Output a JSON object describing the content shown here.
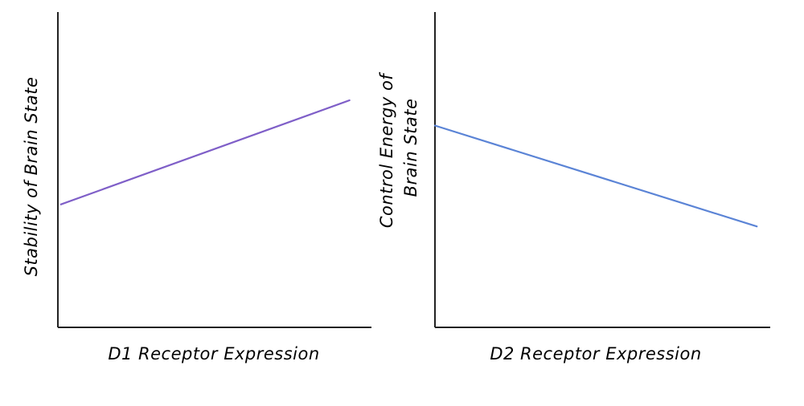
{
  "chart_data": [
    {
      "type": "line",
      "xlabel": "D1 Receptor Expression",
      "ylabel": [
        "Stability of Brain State"
      ],
      "xlim": [
        0,
        1
      ],
      "ylim": [
        0,
        1
      ],
      "grid": false,
      "series": [
        {
          "color": "#7f5fc8",
          "x": [
            0.01,
            0.93
          ],
          "y": [
            0.39,
            0.72
          ]
        }
      ]
    },
    {
      "type": "line",
      "xlabel": "D2 Receptor Expression",
      "ylabel": [
        "Control Energy of",
        "Brain State"
      ],
      "xlim": [
        0,
        1
      ],
      "ylim": [
        0,
        1
      ],
      "grid": false,
      "series": [
        {
          "color": "#5b84d6",
          "x": [
            0.0,
            0.96
          ],
          "y": [
            0.64,
            0.32
          ]
        }
      ]
    }
  ],
  "colors": {
    "axis": "#222222",
    "text": "#000000"
  }
}
